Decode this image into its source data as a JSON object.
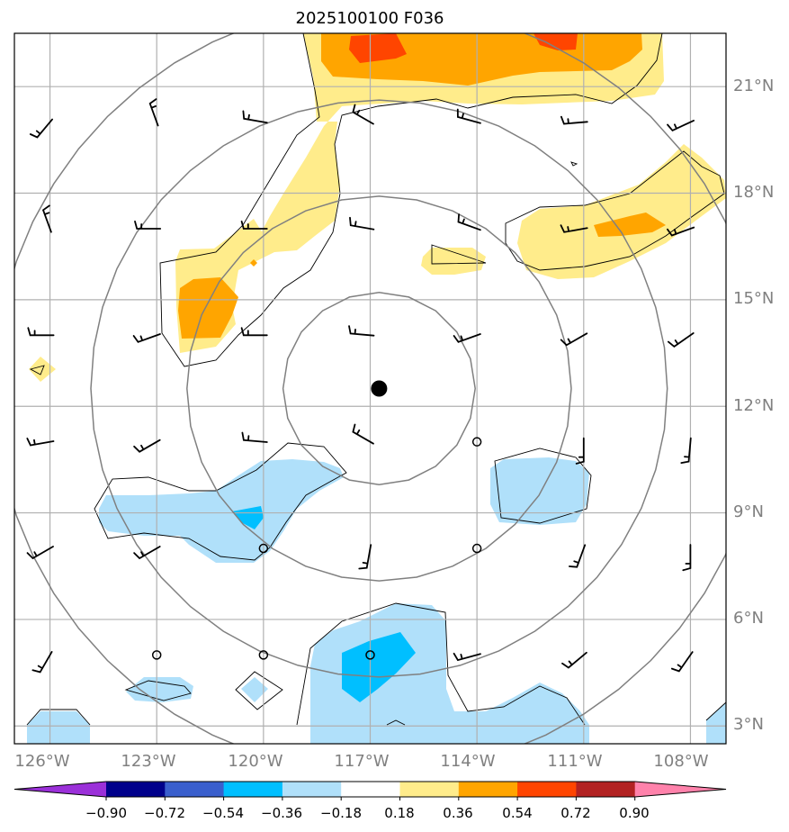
{
  "title": "2025100100 F036",
  "lat_labels": [
    "3°N",
    "6°N",
    "9°N",
    "12°N",
    "15°N",
    "18°N",
    "21°N"
  ],
  "lon_labels": [
    "126°W",
    "123°W",
    "120°W",
    "117°W",
    "114°W",
    "111°W",
    "108°W"
  ],
  "colorbar": {
    "labels": [
      "−0.90",
      "−0.72",
      "−0.54",
      "−0.36",
      "−0.18",
      "0.18",
      "0.36",
      "0.54",
      "0.72",
      "0.90"
    ],
    "colors": [
      "#9b30d9",
      "#00008b",
      "#3a5fcd",
      "#00bfff",
      "#b0e0fa",
      "#ffffff",
      "#ffec8b",
      "#ffa500",
      "#ff4500",
      "#b22222",
      "#ff82ab"
    ]
  },
  "chart_data": {
    "type": "map",
    "title": "2025100100 F036",
    "extent": {
      "lon": [
        -127,
        -107
      ],
      "lat": [
        2.5,
        22.5
      ]
    },
    "gridlines": true,
    "center_marker": {
      "lon": -116.75,
      "lat": 12.5
    },
    "range_rings_deg": [
      2.7,
      5.4,
      8.1,
      10.8
    ],
    "field_levels": [
      -0.9,
      -0.72,
      -0.54,
      -0.36,
      -0.18,
      0.18,
      0.36,
      0.54,
      0.72,
      0.9
    ],
    "calm_stations": [
      {
        "lon": -114,
        "lat": 11
      },
      {
        "lon": -114,
        "lat": 8
      },
      {
        "lon": -120,
        "lat": 8
      },
      {
        "lon": -123,
        "lat": 5
      },
      {
        "lon": -120,
        "lat": 5
      },
      {
        "lon": -117,
        "lat": 5
      }
    ],
    "wind_barbs": [
      {
        "lon": -126,
        "lat": 20,
        "dir": 220
      },
      {
        "lon": -123,
        "lat": 20,
        "dir": 340
      },
      {
        "lon": -120,
        "lat": 20,
        "dir": 280
      },
      {
        "lon": -117,
        "lat": 20,
        "dir": 300
      },
      {
        "lon": -114,
        "lat": 20,
        "dir": 285
      },
      {
        "lon": -111,
        "lat": 20,
        "dir": 265
      },
      {
        "lon": -108,
        "lat": 20,
        "dir": 245
      },
      {
        "lon": -126,
        "lat": 17,
        "dir": 340
      },
      {
        "lon": -123,
        "lat": 17,
        "dir": 270
      },
      {
        "lon": -120,
        "lat": 17,
        "dir": 270
      },
      {
        "lon": -117,
        "lat": 17,
        "dir": 280
      },
      {
        "lon": -114,
        "lat": 17,
        "dir": 290
      },
      {
        "lon": -111,
        "lat": 17,
        "dir": 260
      },
      {
        "lon": -108,
        "lat": 17,
        "dir": 250
      },
      {
        "lon": -126,
        "lat": 14,
        "dir": 270
      },
      {
        "lon": -123,
        "lat": 14,
        "dir": 250
      },
      {
        "lon": -120,
        "lat": 14,
        "dir": 270
      },
      {
        "lon": -117,
        "lat": 14,
        "dir": 275
      },
      {
        "lon": -114,
        "lat": 14,
        "dir": 250
      },
      {
        "lon": -111,
        "lat": 14,
        "dir": 240
      },
      {
        "lon": -108,
        "lat": 14,
        "dir": 235
      },
      {
        "lon": -126,
        "lat": 11,
        "dir": 260
      },
      {
        "lon": -123,
        "lat": 11,
        "dir": 240
      },
      {
        "lon": -120,
        "lat": 11,
        "dir": 275
      },
      {
        "lon": -117,
        "lat": 11,
        "dir": 300
      },
      {
        "lon": -111,
        "lat": 11,
        "dir": 180
      },
      {
        "lon": -108,
        "lat": 11,
        "dir": 185
      },
      {
        "lon": -126,
        "lat": 8,
        "dir": 240
      },
      {
        "lon": -123,
        "lat": 8,
        "dir": 240
      },
      {
        "lon": -117,
        "lat": 8,
        "dir": 190
      },
      {
        "lon": -111,
        "lat": 8,
        "dir": 200
      },
      {
        "lon": -108,
        "lat": 8,
        "dir": 180
      },
      {
        "lon": -126,
        "lat": 5,
        "dir": 210
      },
      {
        "lon": -114,
        "lat": 5,
        "dir": 255
      },
      {
        "lon": -111,
        "lat": 5,
        "dir": 230
      },
      {
        "lon": -108,
        "lat": 5,
        "dir": 215
      }
    ]
  }
}
